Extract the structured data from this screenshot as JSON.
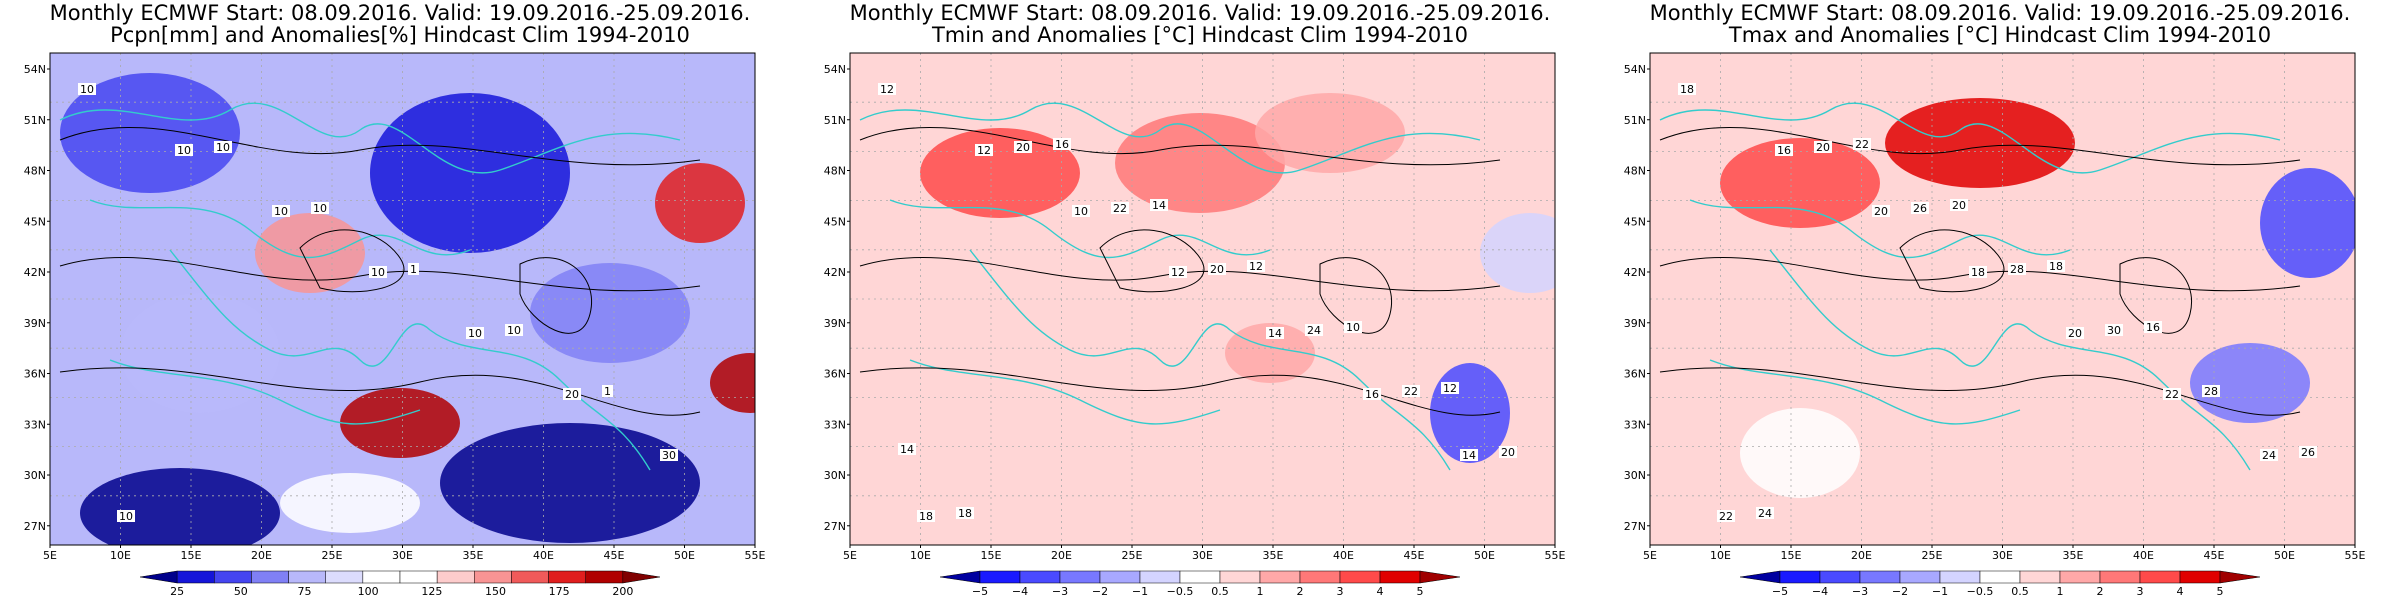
{
  "panels": [
    {
      "title_line1": "Monthly ECMWF Start: 08.09.2016. Valid: 19.09.2016.-25.09.2016.",
      "title_line2": "Pcpn[mm] and Anomalies[%] Hindcast Clim 1994-2010",
      "variable": "Pcpn[mm]",
      "colorbar": {
        "labels": [
          "25",
          "50",
          "75",
          "100",
          "125",
          "150",
          "175",
          "200"
        ],
        "colors": [
          "#00008b",
          "#1515d9",
          "#4545f0",
          "#8080f5",
          "#b8b8fa",
          "#dcdcfd",
          "#ffffff",
          "#ffffff",
          "#fdcccc",
          "#f89494",
          "#f05a5a",
          "#e01e1e",
          "#b00000",
          "#800000"
        ]
      },
      "contour_labels": [
        "10",
        "10",
        "10",
        "10",
        "10",
        "20",
        "30",
        "10",
        "10",
        "10",
        "1",
        "10",
        "1"
      ]
    },
    {
      "title_line1": "Monthly ECMWF Start: 08.09.2016. Valid: 19.09.2016.-25.09.2016.",
      "title_line2": "Tmin and Anomalies [°C] Hindcast Clim 1994-2010",
      "variable": "Tmin",
      "colorbar": {
        "labels": [
          "−5",
          "−4",
          "−3",
          "−2",
          "−1",
          "−0.5",
          "0.5",
          "1",
          "2",
          "3",
          "4",
          "5"
        ],
        "colors": [
          "#0000a0",
          "#1a1aff",
          "#4a4aff",
          "#7878ff",
          "#a8a8ff",
          "#d4d4ff",
          "#ffffff",
          "#ffd6d6",
          "#ffa8a8",
          "#ff7878",
          "#ff4a4a",
          "#e00000",
          "#a00000"
        ]
      },
      "contour_labels": [
        "12",
        "12",
        "10",
        "12",
        "14",
        "16",
        "14",
        "18",
        "20",
        "22",
        "20",
        "24",
        "22",
        "20",
        "18",
        "16",
        "14",
        "12",
        "10",
        "12",
        "14"
      ]
    },
    {
      "title_line1": "Monthly ECMWF Start: 08.09.2016. Valid: 19.09.2016.-25.09.2016.",
      "title_line2": "Tmax and Anomalies [°C] Hindcast Clim 1994-2010",
      "variable": "Tmax",
      "colorbar": {
        "labels": [
          "−5",
          "−4",
          "−3",
          "−2",
          "−1",
          "−0.5",
          "0.5",
          "1",
          "2",
          "3",
          "4",
          "5"
        ],
        "colors": [
          "#0000a0",
          "#1a1aff",
          "#4a4aff",
          "#7878ff",
          "#a8a8ff",
          "#d4d4ff",
          "#ffffff",
          "#ffd6d6",
          "#ffa8a8",
          "#ff7878",
          "#ff4a4a",
          "#e00000",
          "#a00000"
        ]
      },
      "contour_labels": [
        "18",
        "16",
        "20",
        "18",
        "20",
        "22",
        "24",
        "22",
        "20",
        "26",
        "28",
        "30",
        "28",
        "26",
        "24",
        "22",
        "20",
        "18",
        "16"
      ]
    }
  ],
  "lat_ticks": [
    "54N",
    "51N",
    "48N",
    "45N",
    "42N",
    "39N",
    "36N",
    "33N",
    "30N",
    "27N"
  ],
  "lon_ticks": [
    "5E",
    "10E",
    "15E",
    "20E",
    "25E",
    "30E",
    "35E",
    "40E",
    "45E",
    "50E",
    "55E"
  ],
  "colors": {
    "coast": "#33cccc",
    "contour": "#000000",
    "grid": "#aaaaaa"
  }
}
